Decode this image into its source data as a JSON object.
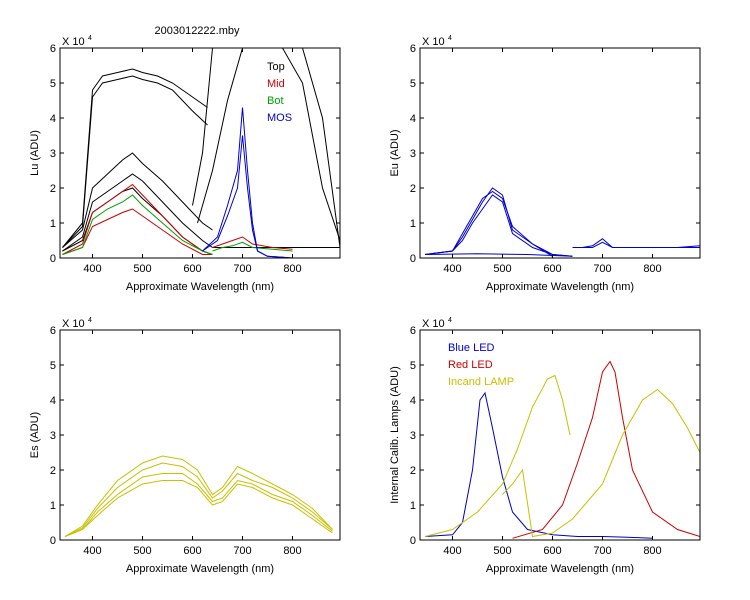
{
  "figure": {
    "title": "2003012222.mby"
  },
  "chart_data": [
    {
      "id": "lu",
      "type": "line",
      "title": "2003012222.mby",
      "xlabel": "Approximate Wavelength (nm)",
      "ylabel": "Lu (ADU)",
      "multiplier": "X 10",
      "exponent": "4",
      "xlim": [
        335,
        895
      ],
      "ylim": [
        0,
        6
      ],
      "xticks": [
        400,
        500,
        600,
        700,
        800
      ],
      "yticks": [
        0,
        1,
        2,
        3,
        4,
        5,
        6
      ],
      "legend": {
        "placement": "top-right",
        "entries": [
          {
            "label": "Top",
            "color": "#000000"
          },
          {
            "label": "Mid",
            "color": "#cc0000"
          },
          {
            "label": "Bot",
            "color": "#00a000"
          },
          {
            "label": "MOS",
            "color": "#0000cc"
          }
        ]
      },
      "series": [
        {
          "color": "#000000",
          "x": [
            340,
            380,
            400,
            420,
            450,
            480,
            500,
            530,
            560,
            600,
            630
          ],
          "y": [
            0.3,
            1.0,
            4.8,
            5.2,
            5.3,
            5.4,
            5.3,
            5.2,
            5.0,
            4.6,
            4.3
          ]
        },
        {
          "color": "#000000",
          "x": [
            340,
            380,
            400,
            420,
            450,
            480,
            500,
            530,
            560,
            600,
            630
          ],
          "y": [
            0.3,
            0.9,
            4.6,
            5.0,
            5.1,
            5.2,
            5.1,
            5.0,
            4.8,
            4.2,
            3.8
          ]
        },
        {
          "color": "#000000",
          "x": [
            340,
            380,
            400,
            430,
            460,
            480,
            500,
            540,
            580,
            620,
            640
          ],
          "y": [
            0.3,
            0.8,
            2.0,
            2.4,
            2.8,
            3.0,
            2.7,
            2.2,
            1.6,
            1.0,
            0.8
          ]
        },
        {
          "color": "#000000",
          "x": [
            340,
            380,
            400,
            430,
            460,
            480,
            500,
            540,
            580,
            620,
            640
          ],
          "y": [
            0.2,
            0.6,
            1.6,
            1.9,
            2.2,
            2.4,
            2.2,
            1.6,
            1.0,
            0.5,
            0.3
          ]
        },
        {
          "color": "#000000",
          "x": [
            340,
            380,
            400,
            430,
            460,
            480,
            500,
            540,
            580,
            620,
            640
          ],
          "y": [
            0.2,
            0.5,
            1.3,
            1.6,
            1.9,
            2.0,
            1.7,
            1.2,
            0.6,
            0.2,
            0.1
          ]
        },
        {
          "color": "#000000",
          "x": [
            640,
            680,
            700,
            740,
            760,
            780,
            800,
            840,
            870,
            895
          ],
          "y": [
            0.3,
            0.3,
            0.3,
            0.3,
            0.3,
            0.3,
            0.3,
            0.3,
            0.3,
            0.3
          ]
        },
        {
          "color": "#000000",
          "x": [
            600,
            620,
            640,
            660,
            680,
            700,
            740,
            780,
            820,
            860,
            895
          ],
          "y": [
            1.5,
            3.0,
            6.0,
            6.0,
            6.0,
            6.0,
            6.0,
            6.0,
            6.0,
            4.0,
            0.3
          ]
        },
        {
          "color": "#000000",
          "x": [
            610,
            640,
            670,
            700,
            740,
            780,
            820,
            860,
            895
          ],
          "y": [
            1.0,
            2.5,
            4.5,
            6.0,
            6.0,
            6.0,
            5.0,
            2.0,
            0.5
          ]
        },
        {
          "color": "#cc0000",
          "x": [
            340,
            380,
            400,
            430,
            460,
            480,
            500,
            540,
            580,
            620,
            640
          ],
          "y": [
            0.1,
            0.4,
            1.3,
            1.6,
            1.9,
            2.1,
            1.8,
            1.2,
            0.6,
            0.2,
            0.1
          ]
        },
        {
          "color": "#cc0000",
          "x": [
            340,
            380,
            400,
            430,
            460,
            480,
            500,
            540,
            580,
            620,
            640
          ],
          "y": [
            0.1,
            0.3,
            0.9,
            1.1,
            1.3,
            1.4,
            1.2,
            0.8,
            0.4,
            0.1,
            0.1
          ]
        },
        {
          "color": "#cc0000",
          "x": [
            640,
            660,
            680,
            700,
            720,
            760,
            800
          ],
          "y": [
            0.3,
            0.4,
            0.5,
            0.6,
            0.4,
            0.3,
            0.25
          ]
        },
        {
          "color": "#00a000",
          "x": [
            340,
            380,
            400,
            430,
            460,
            480,
            500,
            540,
            580,
            620,
            640
          ],
          "y": [
            0.1,
            0.3,
            1.1,
            1.4,
            1.6,
            1.8,
            1.5,
            1.0,
            0.5,
            0.2,
            0.1
          ]
        },
        {
          "color": "#00a000",
          "x": [
            640,
            660,
            680,
            700,
            720,
            760,
            800
          ],
          "y": [
            0.2,
            0.3,
            0.35,
            0.45,
            0.3,
            0.25,
            0.2
          ]
        },
        {
          "color": "#0000cc",
          "x": [
            620,
            650,
            670,
            690,
            700,
            710,
            720,
            730,
            750,
            780,
            800
          ],
          "y": [
            0.2,
            0.6,
            1.5,
            2.5,
            4.3,
            2.5,
            1.0,
            0.2,
            0.05,
            0.02,
            0.0
          ]
        },
        {
          "color": "#0000cc",
          "x": [
            620,
            650,
            670,
            690,
            700,
            710,
            720,
            730,
            750,
            780,
            800
          ],
          "y": [
            0.2,
            0.5,
            1.2,
            2.0,
            3.5,
            2.0,
            0.8,
            0.2,
            0.05,
            0.02,
            0.0
          ]
        }
      ]
    },
    {
      "id": "eu",
      "type": "line",
      "xlabel": "Approximate Wavelength (nm)",
      "ylabel": "Eu  (ADU)",
      "multiplier": "X 10",
      "exponent": "4",
      "xlim": [
        335,
        895
      ],
      "ylim": [
        0,
        6
      ],
      "xticks": [
        400,
        500,
        600,
        700,
        800
      ],
      "yticks": [
        0,
        1,
        2,
        3,
        4,
        5,
        6
      ],
      "series": [
        {
          "color": "#0000cc",
          "x": [
            345,
            400,
            420,
            440,
            460,
            480,
            500,
            520,
            560,
            600,
            640
          ],
          "y": [
            0.1,
            0.2,
            0.6,
            1.1,
            1.6,
            2.0,
            1.8,
            0.8,
            0.4,
            0.1,
            0.05
          ]
        },
        {
          "color": "#0000cc",
          "x": [
            345,
            400,
            420,
            440,
            460,
            480,
            500,
            520,
            560,
            600,
            640
          ],
          "y": [
            0.1,
            0.2,
            0.5,
            1.0,
            1.4,
            1.8,
            1.6,
            0.7,
            0.3,
            0.1,
            0.05
          ]
        },
        {
          "color": "#0000cc",
          "x": [
            345,
            400,
            420,
            440,
            460,
            480,
            500,
            520,
            560,
            600
          ],
          "y": [
            0.1,
            0.2,
            0.7,
            1.2,
            1.7,
            1.9,
            1.7,
            0.9,
            0.4,
            0.05
          ]
        },
        {
          "color": "#0000cc",
          "x": [
            345,
            450,
            550,
            640
          ],
          "y": [
            0.1,
            0.12,
            0.1,
            0.05
          ]
        },
        {
          "color": "#0000cc",
          "x": [
            640,
            660,
            680,
            700,
            720,
            760,
            800,
            850,
            895
          ],
          "y": [
            0.3,
            0.3,
            0.35,
            0.55,
            0.3,
            0.3,
            0.3,
            0.3,
            0.35
          ]
        },
        {
          "color": "#0000cc",
          "x": [
            640,
            660,
            680,
            700,
            720,
            760,
            800,
            850,
            895
          ],
          "y": [
            0.3,
            0.3,
            0.3,
            0.45,
            0.3,
            0.3,
            0.3,
            0.3,
            0.3
          ]
        }
      ]
    },
    {
      "id": "es",
      "type": "line",
      "xlabel": "Approximate Wavelength (nm)",
      "ylabel": "Es  (ADU)",
      "multiplier": "X 10",
      "exponent": "4",
      "xlim": [
        335,
        895
      ],
      "ylim": [
        0,
        6
      ],
      "xticks": [
        400,
        500,
        600,
        700,
        800
      ],
      "yticks": [
        0,
        1,
        2,
        3,
        4,
        5,
        6
      ],
      "series": [
        {
          "color": "#c8c000",
          "x": [
            345,
            380,
            410,
            450,
            500,
            540,
            580,
            610,
            640,
            660,
            690,
            720,
            760,
            800,
            840,
            880
          ],
          "y": [
            0.1,
            0.4,
            1.0,
            1.7,
            2.2,
            2.4,
            2.3,
            2.0,
            1.3,
            1.5,
            2.1,
            1.9,
            1.6,
            1.3,
            0.9,
            0.3
          ]
        },
        {
          "color": "#c8c000",
          "x": [
            345,
            380,
            410,
            450,
            500,
            540,
            580,
            610,
            640,
            660,
            690,
            720,
            760,
            800,
            840,
            880
          ],
          "y": [
            0.1,
            0.35,
            0.9,
            1.5,
            2.0,
            2.2,
            2.1,
            1.8,
            1.2,
            1.4,
            1.9,
            1.7,
            1.5,
            1.2,
            0.8,
            0.3
          ]
        },
        {
          "color": "#c8c000",
          "x": [
            345,
            380,
            410,
            450,
            500,
            540,
            580,
            610,
            640,
            660,
            690,
            720,
            760,
            800,
            840,
            880
          ],
          "y": [
            0.1,
            0.3,
            0.8,
            1.3,
            1.8,
            1.9,
            1.9,
            1.6,
            1.1,
            1.2,
            1.7,
            1.6,
            1.3,
            1.1,
            0.7,
            0.25
          ]
        },
        {
          "color": "#c8c000",
          "x": [
            345,
            380,
            410,
            450,
            500,
            540,
            580,
            610,
            640,
            660,
            690,
            720,
            760,
            800,
            840,
            880
          ],
          "y": [
            0.1,
            0.3,
            0.7,
            1.2,
            1.6,
            1.7,
            1.7,
            1.5,
            1.0,
            1.1,
            1.6,
            1.5,
            1.2,
            1.0,
            0.6,
            0.2
          ]
        }
      ]
    },
    {
      "id": "calib",
      "type": "line",
      "xlabel": "Approximate Wavelength (nm)",
      "ylabel": "Internal Calib. Lamps (ADU)",
      "multiplier": "X 10",
      "exponent": "4",
      "xlim": [
        335,
        895
      ],
      "ylim": [
        0,
        6
      ],
      "xticks": [
        400,
        500,
        600,
        700,
        800
      ],
      "yticks": [
        0,
        1,
        2,
        3,
        4,
        5,
        6
      ],
      "legend": {
        "placement": "top-left",
        "entries": [
          {
            "label": "Blue LED",
            "color": "#0000cc"
          },
          {
            "label": "Red LED",
            "color": "#cc0000"
          },
          {
            "label": "Incand LAMP",
            "color": "#c8c000"
          }
        ]
      },
      "series": [
        {
          "name": "Blue LED",
          "color": "#0000cc",
          "x": [
            345,
            400,
            420,
            440,
            455,
            465,
            480,
            500,
            520,
            550,
            600,
            650,
            700,
            750,
            800
          ],
          "y": [
            0.1,
            0.15,
            0.5,
            2.0,
            4.0,
            4.2,
            3.2,
            1.8,
            0.8,
            0.3,
            0.15,
            0.1,
            0.1,
            0.08,
            0.05
          ]
        },
        {
          "name": "Red LED",
          "color": "#cc0000",
          "x": [
            520,
            580,
            620,
            650,
            680,
            700,
            715,
            725,
            740,
            760,
            800,
            850,
            895
          ],
          "y": [
            0.05,
            0.3,
            1.0,
            2.2,
            3.5,
            4.8,
            5.1,
            4.8,
            3.5,
            2.0,
            0.8,
            0.3,
            0.1
          ]
        },
        {
          "name": "Incand LAMP",
          "color": "#c8c000",
          "x": [
            345,
            400,
            450,
            500,
            530,
            560,
            590,
            605,
            620,
            635
          ],
          "y": [
            0.1,
            0.3,
            0.8,
            1.6,
            2.6,
            3.8,
            4.6,
            4.7,
            4.0,
            3.0
          ]
        },
        {
          "name": "Incand LAMP",
          "color": "#c8c000",
          "x": [
            500,
            520,
            540,
            560,
            600,
            640,
            670,
            700,
            740,
            780,
            810,
            840,
            870,
            895
          ],
          "y": [
            1.3,
            1.6,
            2.0,
            0.1,
            0.2,
            0.6,
            1.1,
            1.6,
            3.0,
            4.0,
            4.3,
            3.9,
            3.2,
            2.5
          ]
        }
      ]
    }
  ]
}
